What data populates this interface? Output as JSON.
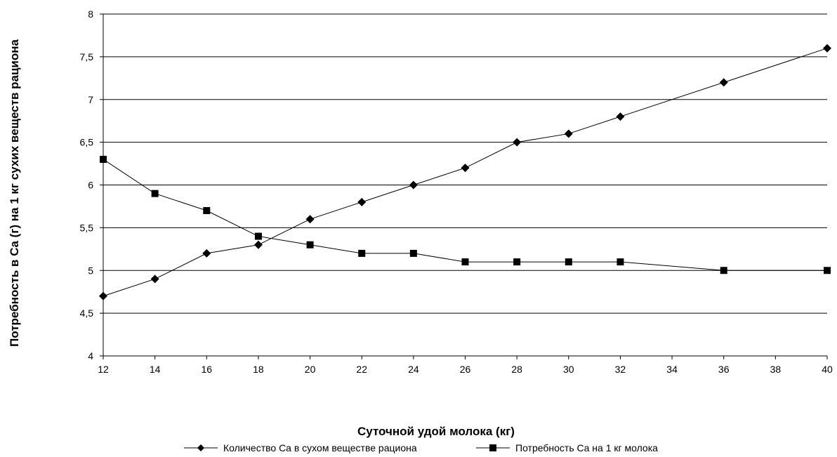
{
  "chart_data": {
    "type": "line",
    "xlabel": "Суточной удой молока (кг)",
    "ylabel": "Потребность в Ca (г) на 1 кг сухих веществ рациона",
    "xlim": [
      12,
      40
    ],
    "ylim": [
      4,
      8
    ],
    "x_ticks": [
      "12",
      "14",
      "16",
      "18",
      "20",
      "22",
      "24",
      "26",
      "28",
      "30",
      "32",
      "34",
      "36",
      "38",
      "40"
    ],
    "y_ticks": [
      "4",
      "4,5",
      "5",
      "5,5",
      "6",
      "6,5",
      "7",
      "7,5",
      "8"
    ],
    "grid": "horizontal",
    "legend_position": "bottom",
    "series": [
      {
        "name": "Количество Ca в сухом веществе рациона",
        "marker": "diamond",
        "color": "#000000",
        "x": [
          12,
          14,
          16,
          18,
          20,
          22,
          24,
          26,
          28,
          30,
          32,
          36,
          40
        ],
        "values": [
          4.7,
          4.9,
          5.2,
          5.3,
          5.6,
          5.8,
          6.0,
          6.2,
          6.5,
          6.6,
          6.8,
          7.2,
          7.6
        ]
      },
      {
        "name": "Потребность Ca на 1 кг молока",
        "marker": "square",
        "color": "#000000",
        "x": [
          12,
          14,
          16,
          18,
          20,
          22,
          24,
          26,
          28,
          30,
          32,
          36,
          40
        ],
        "values": [
          6.3,
          5.9,
          5.7,
          5.4,
          5.3,
          5.2,
          5.2,
          5.1,
          5.1,
          5.1,
          5.1,
          5.0,
          5.0
        ]
      }
    ]
  }
}
